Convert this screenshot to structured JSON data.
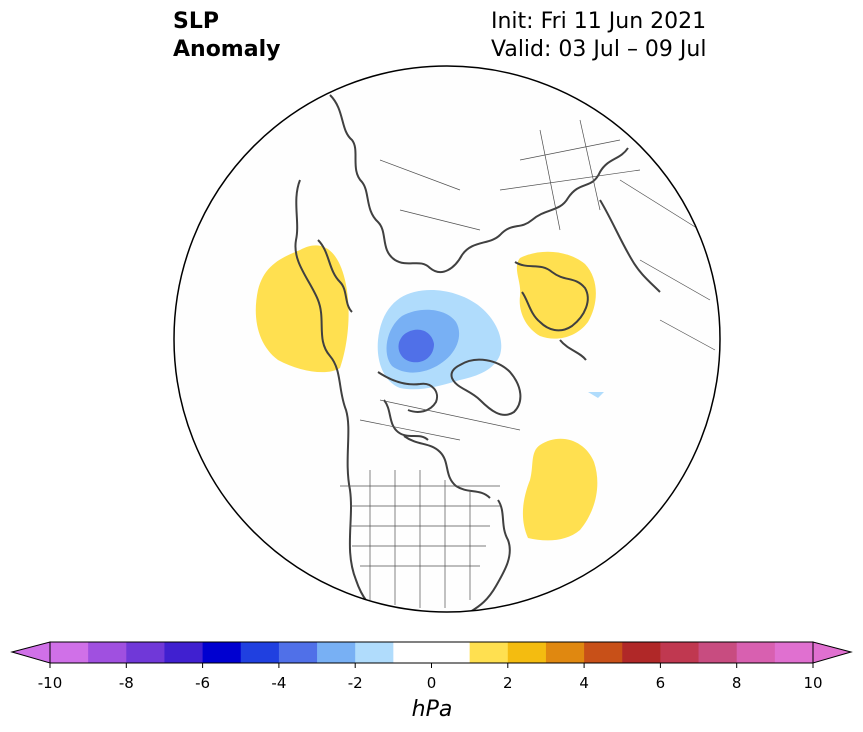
{
  "title": {
    "left_line1": "SLP",
    "left_line2": "Anomaly",
    "right_line1": "Init: Fri 11 Jun 2021",
    "right_line2": "Valid: 03 Jul – 09 Jul"
  },
  "colorbar": {
    "unit": "hPa",
    "ticks": [
      "-10",
      "-8",
      "-6",
      "-4",
      "-2",
      "0",
      "2",
      "4",
      "6",
      "8",
      "10"
    ],
    "colors": [
      "#d070e8",
      "#a050e0",
      "#7038d8",
      "#4020d0",
      "#0000d0",
      "#2040e0",
      "#5070e8",
      "#78b0f4",
      "#b0dcfc",
      "#ffffff",
      "#ffffff",
      "#ffe050",
      "#f4bc10",
      "#e08810",
      "#c85018",
      "#b02828",
      "#c03850",
      "#c84c80",
      "#d860b0",
      "#e070d0"
    ]
  },
  "map": {
    "projection": "north polar stereographic",
    "anomaly_regions": [
      {
        "name": "north-pacific-high",
        "sign": "positive",
        "color": "#ffe050"
      },
      {
        "name": "scandinavia-europe-high",
        "sign": "positive",
        "color": "#ffe050"
      },
      {
        "name": "north-atlantic-high",
        "sign": "positive",
        "color": "#ffe050"
      },
      {
        "name": "arctic-low-outer",
        "sign": "negative",
        "color": "#b0dcfc"
      },
      {
        "name": "arctic-low-mid",
        "sign": "negative",
        "color": "#78b0f4"
      },
      {
        "name": "arctic-low-core",
        "sign": "negative",
        "color": "#5070e8"
      }
    ]
  }
}
